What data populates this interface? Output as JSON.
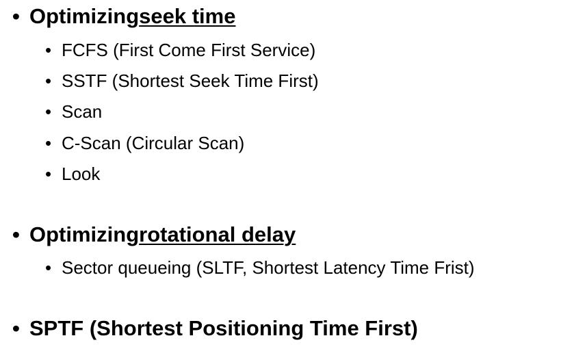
{
  "sections": [
    {
      "prefix": "Optimizing ",
      "emphasis": "seek time",
      "items": [
        "FCFS (First Come First Service)",
        "SSTF (Shortest Seek Time First)",
        "Scan",
        "C-Scan (Circular Scan)",
        "Look"
      ]
    },
    {
      "prefix": "Optimizing ",
      "emphasis": "rotational delay",
      "items": [
        "Sector queueing (SLTF, Shortest Latency Time Frist)"
      ]
    },
    {
      "prefix": "SPTF (Shortest Positioning Time First)",
      "emphasis": "",
      "items": []
    }
  ],
  "bullet_glyph": "•"
}
